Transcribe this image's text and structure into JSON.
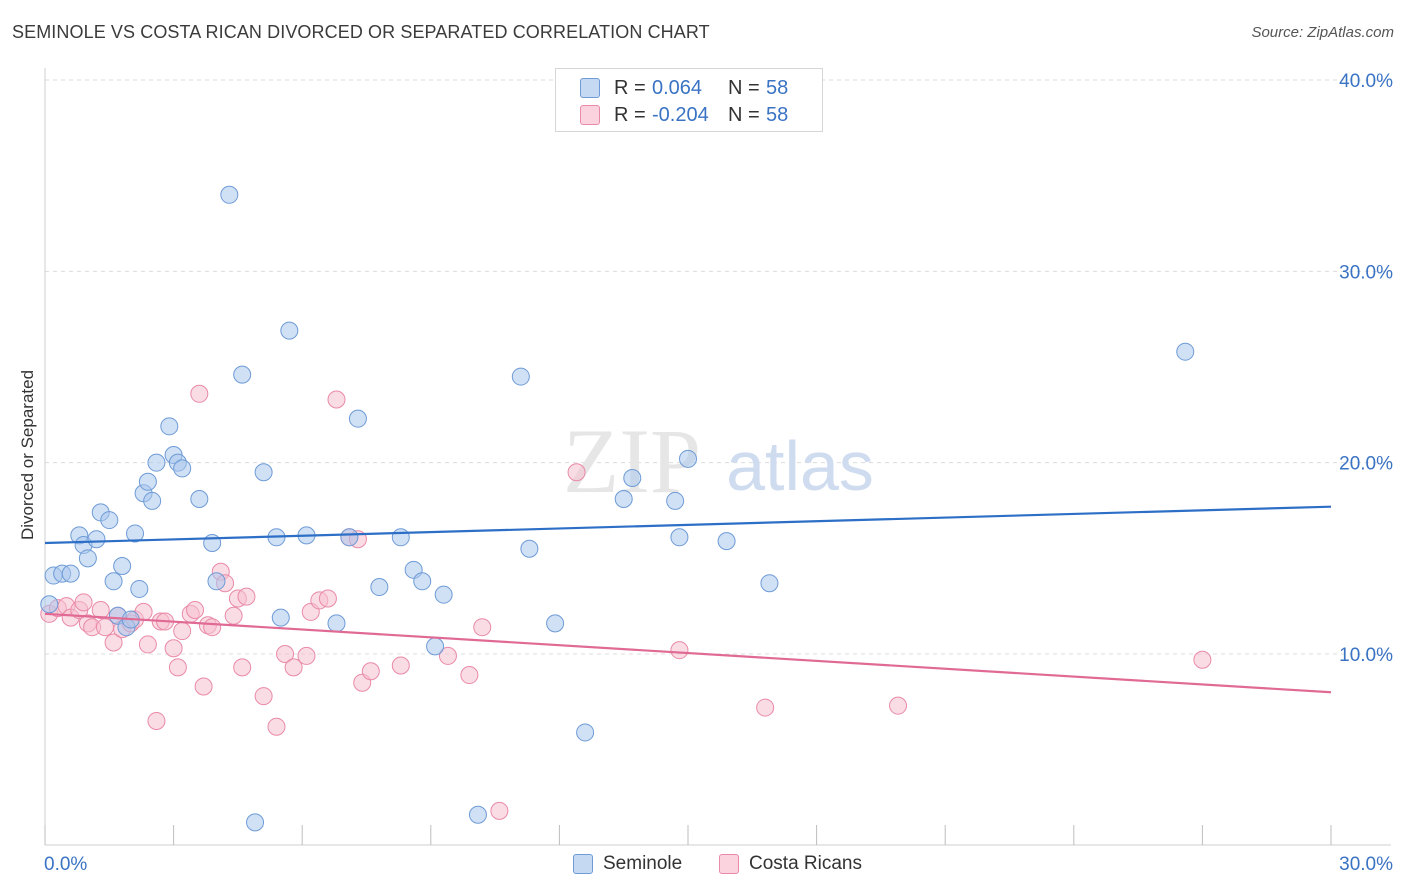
{
  "title": "SEMINOLE VS COSTA RICAN DIVORCED OR SEPARATED CORRELATION CHART",
  "source": "Source: ZipAtlas.com",
  "watermark": {
    "zip": "ZIP",
    "atlas": "atlas"
  },
  "legend": {
    "rows": [
      {
        "r_label": "R =",
        "r_value": "0.064",
        "n_label": "N =",
        "n_value": "58"
      },
      {
        "r_label": "R =",
        "r_value": "-0.204",
        "n_label": "N =",
        "n_value": "58"
      }
    ]
  },
  "bottom_legend": {
    "series1": "Seminole",
    "series2": "Costa Ricans"
  },
  "colors": {
    "seminole_fill": "#a9c6ec",
    "seminole_stroke": "#6e9bd6",
    "seminole_line": "#2d6fc6",
    "costa_fill": "#f6bfd0",
    "costa_stroke": "#e98aa8",
    "costa_line": "#e06a94",
    "tick_label": "#3a73c4",
    "grid": "#dcdcdc"
  },
  "chart_data": {
    "type": "scatter",
    "title": "SEMINOLE VS COSTA RICAN DIVORCED OR SEPARATED CORRELATION CHART",
    "xlabel": "",
    "ylabel": "Divorced or Separated",
    "xlim": [
      0,
      30
    ],
    "ylim": [
      0,
      41
    ],
    "x_tick_labels": [
      "0.0%",
      "30.0%"
    ],
    "y_ticks": [
      10,
      20,
      30,
      40
    ],
    "y_tick_labels": [
      "10.0%",
      "20.0%",
      "30.0%",
      "40.0%"
    ],
    "grid": true,
    "series": [
      {
        "name": "Seminole",
        "trend": [
          [
            0,
            15.8
          ],
          [
            30,
            17.7
          ]
        ],
        "points": [
          [
            0.1,
            12.6
          ],
          [
            0.2,
            14.1
          ],
          [
            0.4,
            14.2
          ],
          [
            0.6,
            14.2
          ],
          [
            0.8,
            16.2
          ],
          [
            0.9,
            15.7
          ],
          [
            1.0,
            15.0
          ],
          [
            1.2,
            16.0
          ],
          [
            1.3,
            17.4
          ],
          [
            1.5,
            17.0
          ],
          [
            1.6,
            13.8
          ],
          [
            1.7,
            12.0
          ],
          [
            1.8,
            14.6
          ],
          [
            1.9,
            11.4
          ],
          [
            2.1,
            16.3
          ],
          [
            2.2,
            13.4
          ],
          [
            2.3,
            18.4
          ],
          [
            2.4,
            19.0
          ],
          [
            2.5,
            18.0
          ],
          [
            2.6,
            20.0
          ],
          [
            2.9,
            21.9
          ],
          [
            3.0,
            20.4
          ],
          [
            3.1,
            20.0
          ],
          [
            3.2,
            19.7
          ],
          [
            3.6,
            18.1
          ],
          [
            3.9,
            15.8
          ],
          [
            4.0,
            13.8
          ],
          [
            4.3,
            34.0
          ],
          [
            4.6,
            24.6
          ],
          [
            4.9,
            1.2
          ],
          [
            5.1,
            19.5
          ],
          [
            5.4,
            16.1
          ],
          [
            5.5,
            11.9
          ],
          [
            5.7,
            26.9
          ],
          [
            6.1,
            16.2
          ],
          [
            6.8,
            11.6
          ],
          [
            7.1,
            16.1
          ],
          [
            7.3,
            22.3
          ],
          [
            7.8,
            13.5
          ],
          [
            8.3,
            16.1
          ],
          [
            8.6,
            14.4
          ],
          [
            8.8,
            13.8
          ],
          [
            9.1,
            10.4
          ],
          [
            9.3,
            13.1
          ],
          [
            10.1,
            1.6
          ],
          [
            11.1,
            24.5
          ],
          [
            11.3,
            15.5
          ],
          [
            11.9,
            11.6
          ],
          [
            12.6,
            5.9
          ],
          [
            13.5,
            18.1
          ],
          [
            13.7,
            19.2
          ],
          [
            14.7,
            18.0
          ],
          [
            14.8,
            16.1
          ],
          [
            15.0,
            20.2
          ],
          [
            15.9,
            15.9
          ],
          [
            16.9,
            13.7
          ],
          [
            26.6,
            25.8
          ],
          [
            2.0,
            11.8
          ]
        ]
      },
      {
        "name": "Costa Ricans",
        "trend": [
          [
            0,
            12.1
          ],
          [
            30,
            8.0
          ]
        ],
        "points": [
          [
            0.1,
            12.1
          ],
          [
            0.3,
            12.4
          ],
          [
            0.5,
            12.5
          ],
          [
            0.6,
            11.9
          ],
          [
            0.8,
            12.3
          ],
          [
            0.9,
            12.7
          ],
          [
            1.0,
            11.6
          ],
          [
            1.1,
            11.4
          ],
          [
            1.3,
            12.3
          ],
          [
            1.4,
            11.4
          ],
          [
            1.6,
            10.6
          ],
          [
            1.7,
            12.0
          ],
          [
            1.8,
            11.3
          ],
          [
            2.0,
            11.6
          ],
          [
            2.1,
            11.8
          ],
          [
            2.3,
            12.2
          ],
          [
            2.4,
            10.5
          ],
          [
            2.6,
            6.5
          ],
          [
            2.7,
            11.7
          ],
          [
            2.8,
            11.7
          ],
          [
            3.0,
            10.3
          ],
          [
            3.1,
            9.3
          ],
          [
            3.2,
            11.2
          ],
          [
            3.4,
            12.1
          ],
          [
            3.5,
            12.3
          ],
          [
            3.6,
            23.6
          ],
          [
            3.7,
            8.3
          ],
          [
            3.8,
            11.5
          ],
          [
            3.9,
            11.4
          ],
          [
            4.1,
            14.3
          ],
          [
            4.2,
            13.7
          ],
          [
            4.4,
            12.0
          ],
          [
            4.5,
            12.9
          ],
          [
            4.6,
            9.3
          ],
          [
            4.7,
            13.0
          ],
          [
            5.1,
            7.8
          ],
          [
            5.4,
            6.2
          ],
          [
            5.6,
            10.0
          ],
          [
            5.8,
            9.3
          ],
          [
            6.1,
            9.9
          ],
          [
            6.2,
            12.2
          ],
          [
            6.4,
            12.8
          ],
          [
            6.6,
            12.9
          ],
          [
            6.8,
            23.3
          ],
          [
            7.1,
            16.1
          ],
          [
            7.3,
            16.0
          ],
          [
            7.4,
            8.5
          ],
          [
            7.6,
            9.1
          ],
          [
            8.3,
            9.4
          ],
          [
            9.4,
            9.9
          ],
          [
            9.9,
            8.9
          ],
          [
            10.2,
            11.4
          ],
          [
            10.6,
            1.8
          ],
          [
            12.4,
            19.5
          ],
          [
            14.8,
            10.2
          ],
          [
            16.8,
            7.2
          ],
          [
            19.9,
            7.3
          ],
          [
            27.0,
            9.7
          ]
        ]
      }
    ]
  }
}
